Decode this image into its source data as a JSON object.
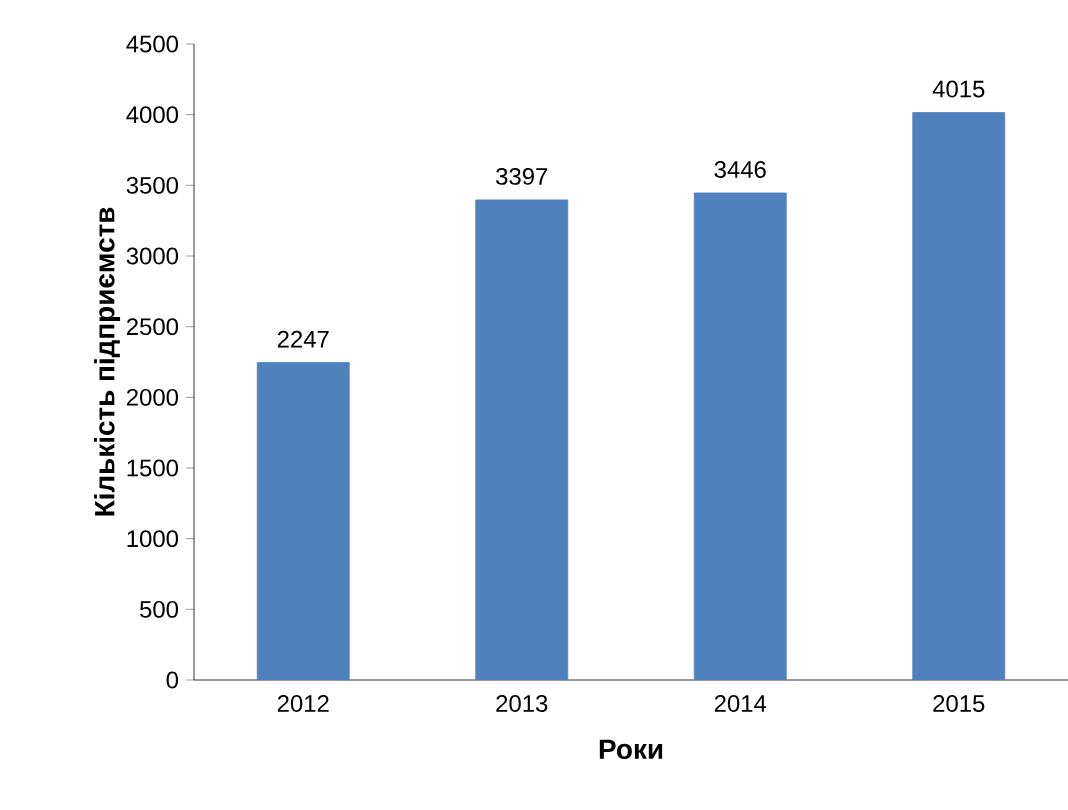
{
  "chart_data": {
    "type": "bar",
    "xlabel": "Роки",
    "ylabel": "Кількість підприємств",
    "categories": [
      "2012",
      "2013",
      "2014",
      "2015"
    ],
    "values": [
      2247,
      3397,
      3446,
      4015
    ],
    "color": "#4f81bd",
    "data_labels": true,
    "ylim": [
      0,
      4500
    ],
    "yticks": [
      0,
      500,
      1000,
      1500,
      2000,
      2500,
      3000,
      3500,
      4000,
      4500
    ],
    "grid": false
  }
}
